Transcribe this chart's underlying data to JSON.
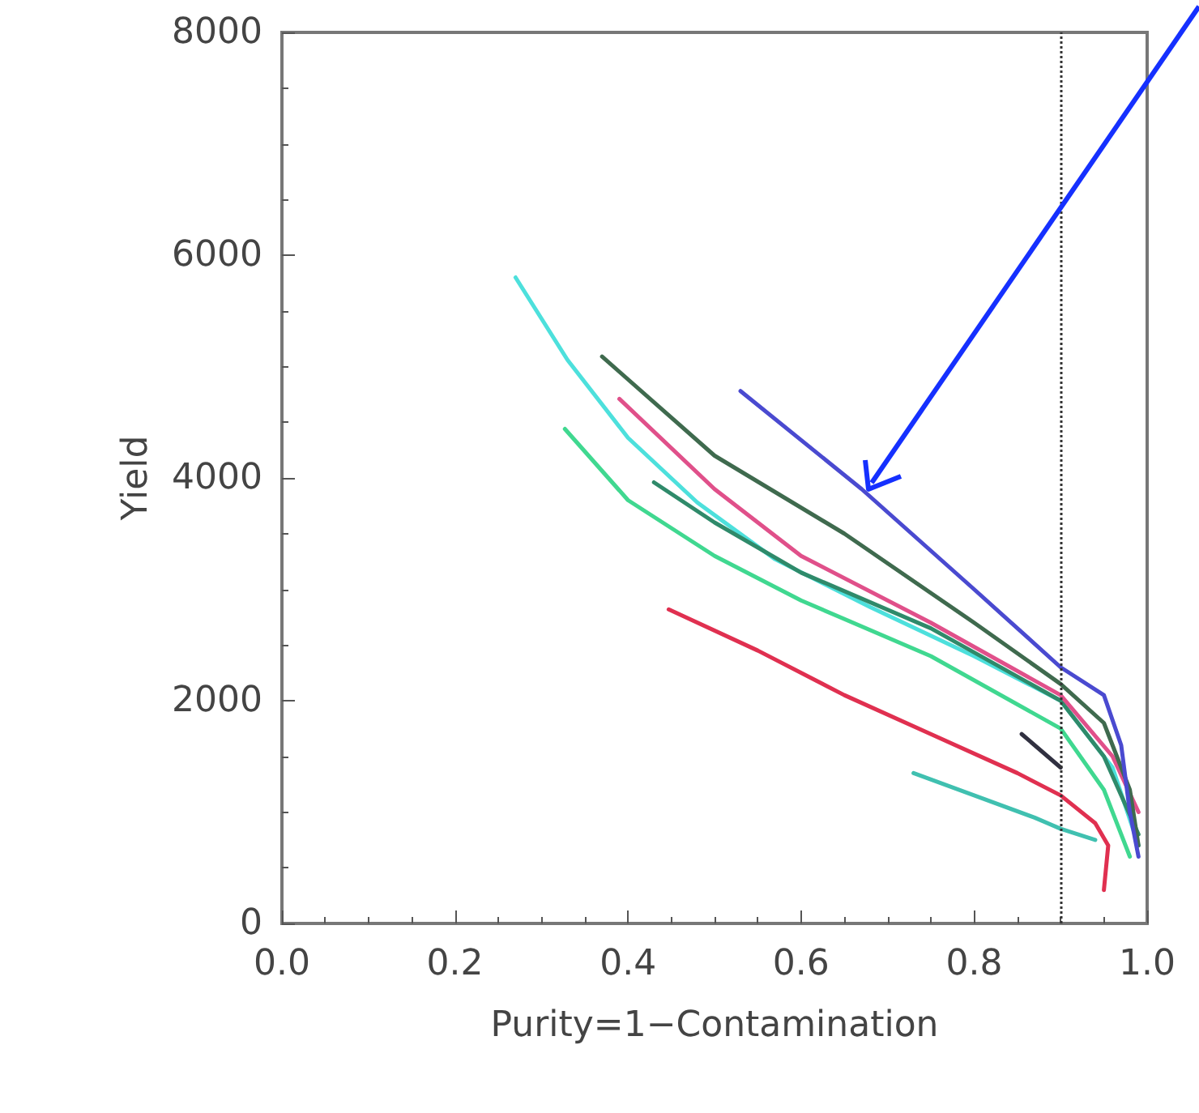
{
  "chart_data": {
    "type": "line",
    "xlabel": "Purity=1−Contamination",
    "ylabel": "Yield",
    "xlim": [
      0,
      1
    ],
    "xticks": [
      {
        "value": 0,
        "label": "0.0"
      },
      {
        "value": 0.2,
        "label": "0.2"
      },
      {
        "value": 0.4,
        "label": "0.4"
      },
      {
        "value": 0.6,
        "label": "0.6"
      },
      {
        "value": 0.8,
        "label": "0.8"
      },
      {
        "value": 1,
        "label": "1.0"
      }
    ],
    "ylim": [
      0,
      8000
    ],
    "yticks": [
      0,
      2000,
      4000,
      6000,
      8000
    ],
    "grid": false,
    "marker": "none",
    "line_style": "solid",
    "ref_lines": [
      {
        "axis": "x",
        "value": 0.9,
        "line_style": "dotted",
        "color": "#333333"
      }
    ],
    "series": [
      {
        "color": "#4de0dc",
        "x": [
          0.27,
          0.33,
          0.4,
          0.48,
          0.57,
          0.68,
          0.8,
          0.9,
          0.96,
          0.99
        ],
        "values": [
          5800,
          5060,
          4360,
          3780,
          3270,
          2840,
          2400,
          2000,
          1400,
          700
        ]
      },
      {
        "color": "#40d890",
        "x": [
          0.327,
          0.4,
          0.5,
          0.6,
          0.75,
          0.9,
          0.95,
          0.98
        ],
        "values": [
          4440,
          3800,
          3300,
          2900,
          2400,
          1750,
          1200,
          600
        ]
      },
      {
        "color": "#2f8a6a",
        "x": [
          0.43,
          0.5,
          0.6,
          0.75,
          0.9,
          0.95,
          0.99
        ],
        "values": [
          3960,
          3600,
          3150,
          2650,
          2000,
          1500,
          800
        ]
      },
      {
        "color": "#e0508a",
        "x": [
          0.39,
          0.5,
          0.6,
          0.75,
          0.9,
          0.96,
          0.99
        ],
        "values": [
          4710,
          3900,
          3300,
          2700,
          2050,
          1500,
          1000
        ]
      },
      {
        "color": "#3f6a4e",
        "x": [
          0.37,
          0.5,
          0.65,
          0.8,
          0.9,
          0.95,
          0.98,
          0.99
        ],
        "values": [
          5090,
          4200,
          3500,
          2700,
          2150,
          1800,
          1200,
          700
        ]
      },
      {
        "color": "#4a4ad0",
        "x": [
          0.53,
          0.67,
          0.8,
          0.9,
          0.95,
          0.97,
          0.98,
          0.99
        ],
        "values": [
          4780,
          3900,
          3000,
          2300,
          2050,
          1600,
          1000,
          600
        ]
      },
      {
        "color": "#e03050",
        "x": [
          0.447,
          0.55,
          0.65,
          0.75,
          0.85,
          0.9,
          0.94,
          0.955,
          0.95
        ],
        "values": [
          2820,
          2450,
          2050,
          1700,
          1350,
          1150,
          900,
          700,
          300
        ]
      },
      {
        "color": "#303040",
        "x": [
          0.855,
          0.9
        ],
        "values": [
          1700,
          1400
        ]
      },
      {
        "color": "#40c0b0",
        "x": [
          0.73,
          0.8,
          0.87,
          0.9,
          0.94
        ],
        "values": [
          1350,
          1150,
          950,
          850,
          750
        ]
      }
    ]
  }
}
